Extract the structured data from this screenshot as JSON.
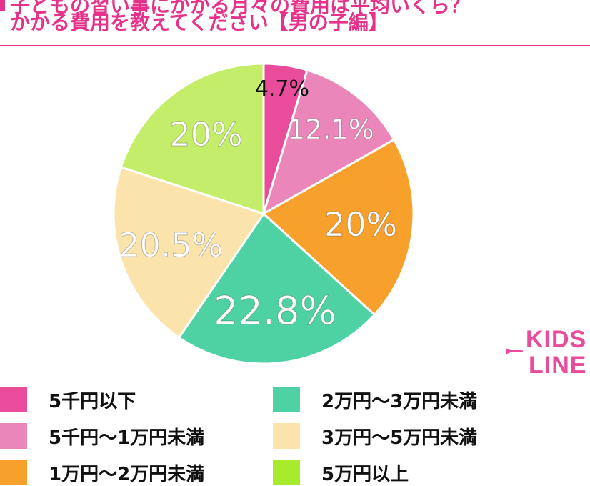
{
  "header": {
    "title_line1": "子どもの習い事にかかる月々の費用は平均いくら？",
    "title_line2": "かかる費用を教えてください【男の子編】",
    "accent_color": "#e6328a"
  },
  "chart_data": {
    "type": "pie",
    "title": "かかる費用を教えてください【男の子編】",
    "categories": [
      "5千円以下",
      "5千円〜1万円未満",
      "1万円〜2万円未満",
      "2万円〜3万円未満",
      "3万円〜5万円未満",
      "5万円以上"
    ],
    "values": [
      4.7,
      12.1,
      20,
      22.8,
      20.5,
      20
    ],
    "data_labels": [
      "4.7%",
      "12.1%",
      "20%",
      "22.8%",
      "20.5%",
      "20%"
    ],
    "colors": [
      "#e84c9a",
      "#ea86b9",
      "#f7a02b",
      "#4ed2a4",
      "#fae4ab",
      "#c4ee6a"
    ],
    "label_colors": [
      "#111111",
      "#ffffff",
      "#ffffff",
      "#ffffff",
      "#ffffff",
      "#ffffff"
    ],
    "start": "12 o'clock",
    "direction": "clockwise",
    "legend_position": "bottom"
  },
  "legend": {
    "items": [
      {
        "label": "5千円以下",
        "color": "#e84c9a"
      },
      {
        "label": "5千円〜1万円未満",
        "color": "#ea86b9"
      },
      {
        "label": "1万円〜2万円未満",
        "color": "#f7a02b"
      },
      {
        "label": "2万円〜3万円未満",
        "color": "#4ed2a4"
      },
      {
        "label": "3万円〜5万円未満",
        "color": "#fae4ab"
      },
      {
        "label": "5万円以上",
        "color": "#a8ea2c"
      }
    ]
  },
  "logo": {
    "line1": "KIDS",
    "line2": "LINE",
    "color": "#e84c9a"
  }
}
